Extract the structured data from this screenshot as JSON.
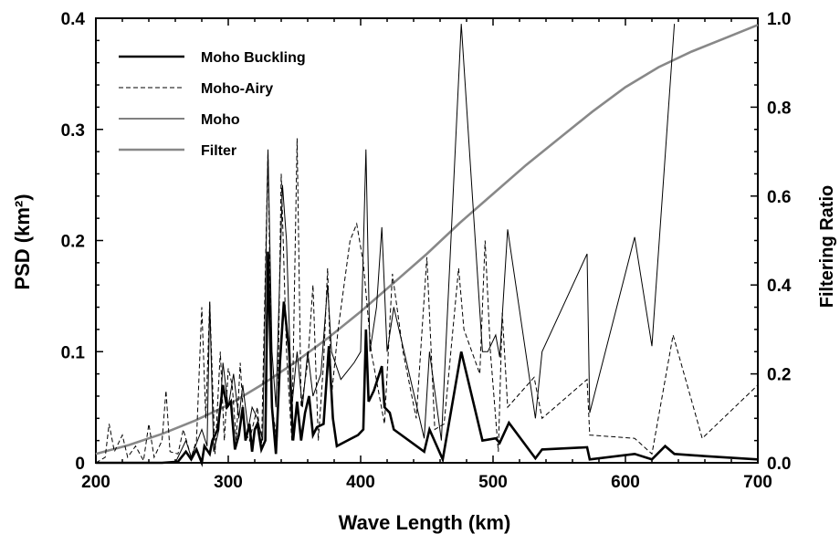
{
  "chart_data": {
    "type": "line",
    "xlabel": "Wave Length (km)",
    "ylabel": "PSD (km²)",
    "ylabel_right": "Filtering Ratio",
    "xlim": [
      200,
      700
    ],
    "ylim": [
      0,
      0.4
    ],
    "ylim_right": [
      0,
      1.0
    ],
    "xticks": [
      200,
      300,
      400,
      500,
      600,
      700
    ],
    "yticks": [
      0,
      0.1,
      0.2,
      0.3,
      0.4
    ],
    "yticks_right": [
      0.0,
      0.2,
      0.4,
      0.6,
      0.8,
      1.0
    ],
    "xtick_labels": [
      "200",
      "300",
      "400",
      "500",
      "600",
      "700"
    ],
    "ytick_labels": [
      "0",
      "0.1",
      "0.2",
      "0.3",
      "0.4"
    ],
    "ytick_labels_right": [
      "0.0",
      "0.2",
      "0.4",
      "0.6",
      "0.8",
      "1.0"
    ],
    "grid": false,
    "legend_position": "top-left",
    "series": [
      {
        "name": "Moho Buckling",
        "axis": "left",
        "color": "#000000",
        "style": "solid-thick",
        "points": [
          [
            200,
            0
          ],
          [
            230,
            0
          ],
          [
            250,
            0
          ],
          [
            262,
            0.001
          ],
          [
            268,
            0.01
          ],
          [
            272,
            0.003
          ],
          [
            276,
            0.012
          ],
          [
            280,
            0
          ],
          [
            282,
            0.015
          ],
          [
            286,
            0.008
          ],
          [
            288,
            0.02
          ],
          [
            292,
            0.03
          ],
          [
            296,
            0.07
          ],
          [
            299,
            0.05
          ],
          [
            302,
            0.055
          ],
          [
            305,
            0.012
          ],
          [
            308,
            0.025
          ],
          [
            311,
            0.05
          ],
          [
            313,
            0.02
          ],
          [
            316,
            0.035
          ],
          [
            318,
            0.01
          ],
          [
            320,
            0.03
          ],
          [
            322,
            0.035
          ],
          [
            325,
            0.012
          ],
          [
            328,
            0.02
          ],
          [
            330,
            0.19
          ],
          [
            333,
            0.05
          ],
          [
            336,
            0.008
          ],
          [
            339,
            0.09
          ],
          [
            342,
            0.145
          ],
          [
            346,
            0.1
          ],
          [
            349,
            0.02
          ],
          [
            352,
            0.055
          ],
          [
            355,
            0.02
          ],
          [
            358,
            0.045
          ],
          [
            361,
            0.06
          ],
          [
            364,
            0.025
          ],
          [
            367,
            0.032
          ],
          [
            372,
            0.035
          ],
          [
            376,
            0.105
          ],
          [
            379,
            0.04
          ],
          [
            382,
            0.015
          ],
          [
            390,
            0.02
          ],
          [
            398,
            0.025
          ],
          [
            402,
            0.03
          ],
          [
            404,
            0.12
          ],
          [
            406,
            0.055
          ],
          [
            410,
            0.065
          ],
          [
            416,
            0.087
          ],
          [
            418,
            0.05
          ],
          [
            422,
            0.045
          ],
          [
            425,
            0.03
          ],
          [
            448,
            0.01
          ],
          [
            452,
            0.03
          ],
          [
            462,
            0.003
          ],
          [
            476,
            0.1
          ],
          [
            492,
            0.02
          ],
          [
            502,
            0.022
          ],
          [
            505,
            0.018
          ],
          [
            512,
            0.036
          ],
          [
            532,
            0.004
          ],
          [
            537,
            0.012
          ],
          [
            571,
            0.014
          ],
          [
            573,
            0.003
          ],
          [
            607,
            0.008
          ],
          [
            620,
            0.003
          ],
          [
            630,
            0.015
          ],
          [
            637,
            0.008
          ],
          [
            660,
            0.006
          ],
          [
            700,
            0.003
          ]
        ]
      },
      {
        "name": "Moho-Airy",
        "axis": "left",
        "color": "#000000",
        "style": "dashed",
        "points": [
          [
            200,
            0
          ],
          [
            207,
            0.005
          ],
          [
            210,
            0.035
          ],
          [
            214,
            0.01
          ],
          [
            220,
            0.025
          ],
          [
            224,
            0.005
          ],
          [
            230,
            0.015
          ],
          [
            236,
            0.002
          ],
          [
            240,
            0.035
          ],
          [
            244,
            0.005
          ],
          [
            250,
            0.02
          ],
          [
            253,
            0.065
          ],
          [
            256,
            0.01
          ],
          [
            262,
            0.008
          ],
          [
            266,
            0.03
          ],
          [
            272,
            0.005
          ],
          [
            276,
            0.02
          ],
          [
            280,
            0.14
          ],
          [
            283,
            0.04
          ],
          [
            286,
            0.145
          ],
          [
            290,
            0.008
          ],
          [
            294,
            0.1
          ],
          [
            297,
            0.02
          ],
          [
            300,
            0.085
          ],
          [
            303,
            0.07
          ],
          [
            306,
            0.02
          ],
          [
            309,
            0.09
          ],
          [
            312,
            0.03
          ],
          [
            316,
            0.02
          ],
          [
            322,
            0.05
          ],
          [
            325,
            0.01
          ],
          [
            330,
            0.28
          ],
          [
            333,
            0.05
          ],
          [
            337,
            0.02
          ],
          [
            340,
            0.26
          ],
          [
            344,
            0.1
          ],
          [
            348,
            0.02
          ],
          [
            352,
            0.292
          ],
          [
            355,
            0.05
          ],
          [
            360,
            0.09
          ],
          [
            364,
            0.16
          ],
          [
            368,
            0.02
          ],
          [
            372,
            0.09
          ],
          [
            375,
            0.175
          ],
          [
            378,
            0.06
          ],
          [
            383,
            0.12
          ],
          [
            392,
            0.2
          ],
          [
            397,
            0.215
          ],
          [
            402,
            0.18
          ],
          [
            408,
            0.1
          ],
          [
            418,
            0.035
          ],
          [
            424,
            0.17
          ],
          [
            432,
            0.1
          ],
          [
            442,
            0.04
          ],
          [
            450,
            0.185
          ],
          [
            456,
            0.03
          ],
          [
            463,
            0.035
          ],
          [
            474,
            0.175
          ],
          [
            478,
            0.12
          ],
          [
            490,
            0.08
          ],
          [
            494,
            0.2
          ],
          [
            498,
            0.1
          ],
          [
            504,
            0.01
          ],
          [
            507,
            0.135
          ],
          [
            511,
            0.05
          ],
          [
            531,
            0.077
          ],
          [
            537,
            0.04
          ],
          [
            571,
            0.075
          ],
          [
            573,
            0.025
          ],
          [
            607,
            0.022
          ],
          [
            620,
            0.008
          ],
          [
            636,
            0.115
          ],
          [
            658,
            0.022
          ],
          [
            700,
            0.07
          ]
        ]
      },
      {
        "name": "Moho",
        "axis": "left",
        "color": "#000000",
        "style": "solid-thin",
        "points": [
          [
            200,
            0
          ],
          [
            240,
            0
          ],
          [
            260,
            0
          ],
          [
            268,
            0.02
          ],
          [
            272,
            0.005
          ],
          [
            280,
            0.03
          ],
          [
            284,
            0.015
          ],
          [
            286,
            0.145
          ],
          [
            289,
            0.01
          ],
          [
            293,
            0.03
          ],
          [
            296,
            0.09
          ],
          [
            300,
            0.05
          ],
          [
            304,
            0.08
          ],
          [
            308,
            0.04
          ],
          [
            311,
            0.07
          ],
          [
            315,
            0.03
          ],
          [
            318,
            0.05
          ],
          [
            322,
            0.04
          ],
          [
            326,
            0.02
          ],
          [
            330,
            0.282
          ],
          [
            333,
            0.1
          ],
          [
            336,
            0.05
          ],
          [
            341,
            0.25
          ],
          [
            344,
            0.2
          ],
          [
            348,
            0.05
          ],
          [
            352,
            0.1
          ],
          [
            356,
            0.05
          ],
          [
            360,
            0.1
          ],
          [
            364,
            0.06
          ],
          [
            370,
            0.08
          ],
          [
            375,
            0.16
          ],
          [
            378,
            0.1
          ],
          [
            385,
            0.075
          ],
          [
            395,
            0.09
          ],
          [
            400,
            0.1
          ],
          [
            404,
            0.282
          ],
          [
            407,
            0.1
          ],
          [
            412,
            0.14
          ],
          [
            416,
            0.212
          ],
          [
            420,
            0.1
          ],
          [
            425,
            0.14
          ],
          [
            448,
            0.022
          ],
          [
            452,
            0.1
          ],
          [
            461,
            0.02
          ],
          [
            476,
            0.395
          ],
          [
            492,
            0.1
          ],
          [
            496,
            0.1
          ],
          [
            502,
            0.115
          ],
          [
            505,
            0.095
          ],
          [
            511,
            0.21
          ],
          [
            532,
            0.04
          ],
          [
            537,
            0.1
          ],
          [
            571,
            0.188
          ],
          [
            573,
            0.045
          ],
          [
            607,
            0.203
          ],
          [
            620,
            0.105
          ],
          [
            637,
            0.395
          ]
        ]
      },
      {
        "name": "Filter",
        "axis": "right",
        "color": "#888888",
        "style": "solid-gray",
        "points": [
          [
            200,
            0.02
          ],
          [
            225,
            0.04
          ],
          [
            250,
            0.065
          ],
          [
            275,
            0.095
          ],
          [
            300,
            0.13
          ],
          [
            325,
            0.175
          ],
          [
            350,
            0.225
          ],
          [
            375,
            0.28
          ],
          [
            400,
            0.34
          ],
          [
            425,
            0.405
          ],
          [
            450,
            0.47
          ],
          [
            475,
            0.54
          ],
          [
            500,
            0.605
          ],
          [
            525,
            0.67
          ],
          [
            550,
            0.73
          ],
          [
            575,
            0.79
          ],
          [
            600,
            0.845
          ],
          [
            625,
            0.89
          ],
          [
            650,
            0.925
          ],
          [
            675,
            0.955
          ],
          [
            700,
            0.985
          ]
        ]
      }
    ]
  }
}
